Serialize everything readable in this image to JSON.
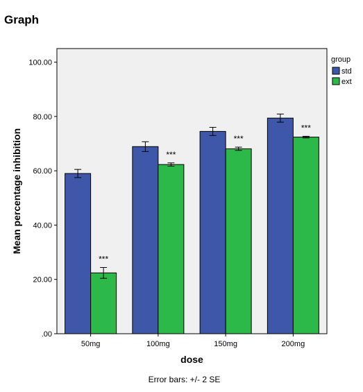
{
  "page": {
    "heading": "Graph",
    "footnote": "Error bars: +/- 2 SE"
  },
  "chart_data": {
    "type": "bar",
    "title": "",
    "xlabel": "dose",
    "ylabel": "Mean percentage inhibition",
    "ylim": [
      0,
      105
    ],
    "yticks": [
      0,
      20,
      40,
      60,
      80,
      100
    ],
    "ytick_labels": [
      ".00",
      "20.00",
      "40.00",
      "60.00",
      "80.00",
      "100.00"
    ],
    "categories": [
      "50mg",
      "100mg",
      "150mg",
      "200mg"
    ],
    "series": [
      {
        "name": "std",
        "color": "#3F57A8",
        "values": [
          59.0,
          68.9,
          74.5,
          79.4
        ],
        "err": [
          1.5,
          1.8,
          1.5,
          1.5
        ],
        "labels": [
          "",
          "",
          "",
          ""
        ]
      },
      {
        "name": "ext",
        "color": "#2DB84A",
        "values": [
          22.4,
          62.3,
          68.1,
          72.4
        ],
        "err": [
          2.0,
          0.6,
          0.6,
          0.3
        ],
        "labels": [
          "***",
          "***",
          "***",
          "***"
        ]
      }
    ],
    "legend": {
      "title": "group",
      "position": "right"
    },
    "grid": false,
    "plot_background": "#F0F0F0"
  }
}
